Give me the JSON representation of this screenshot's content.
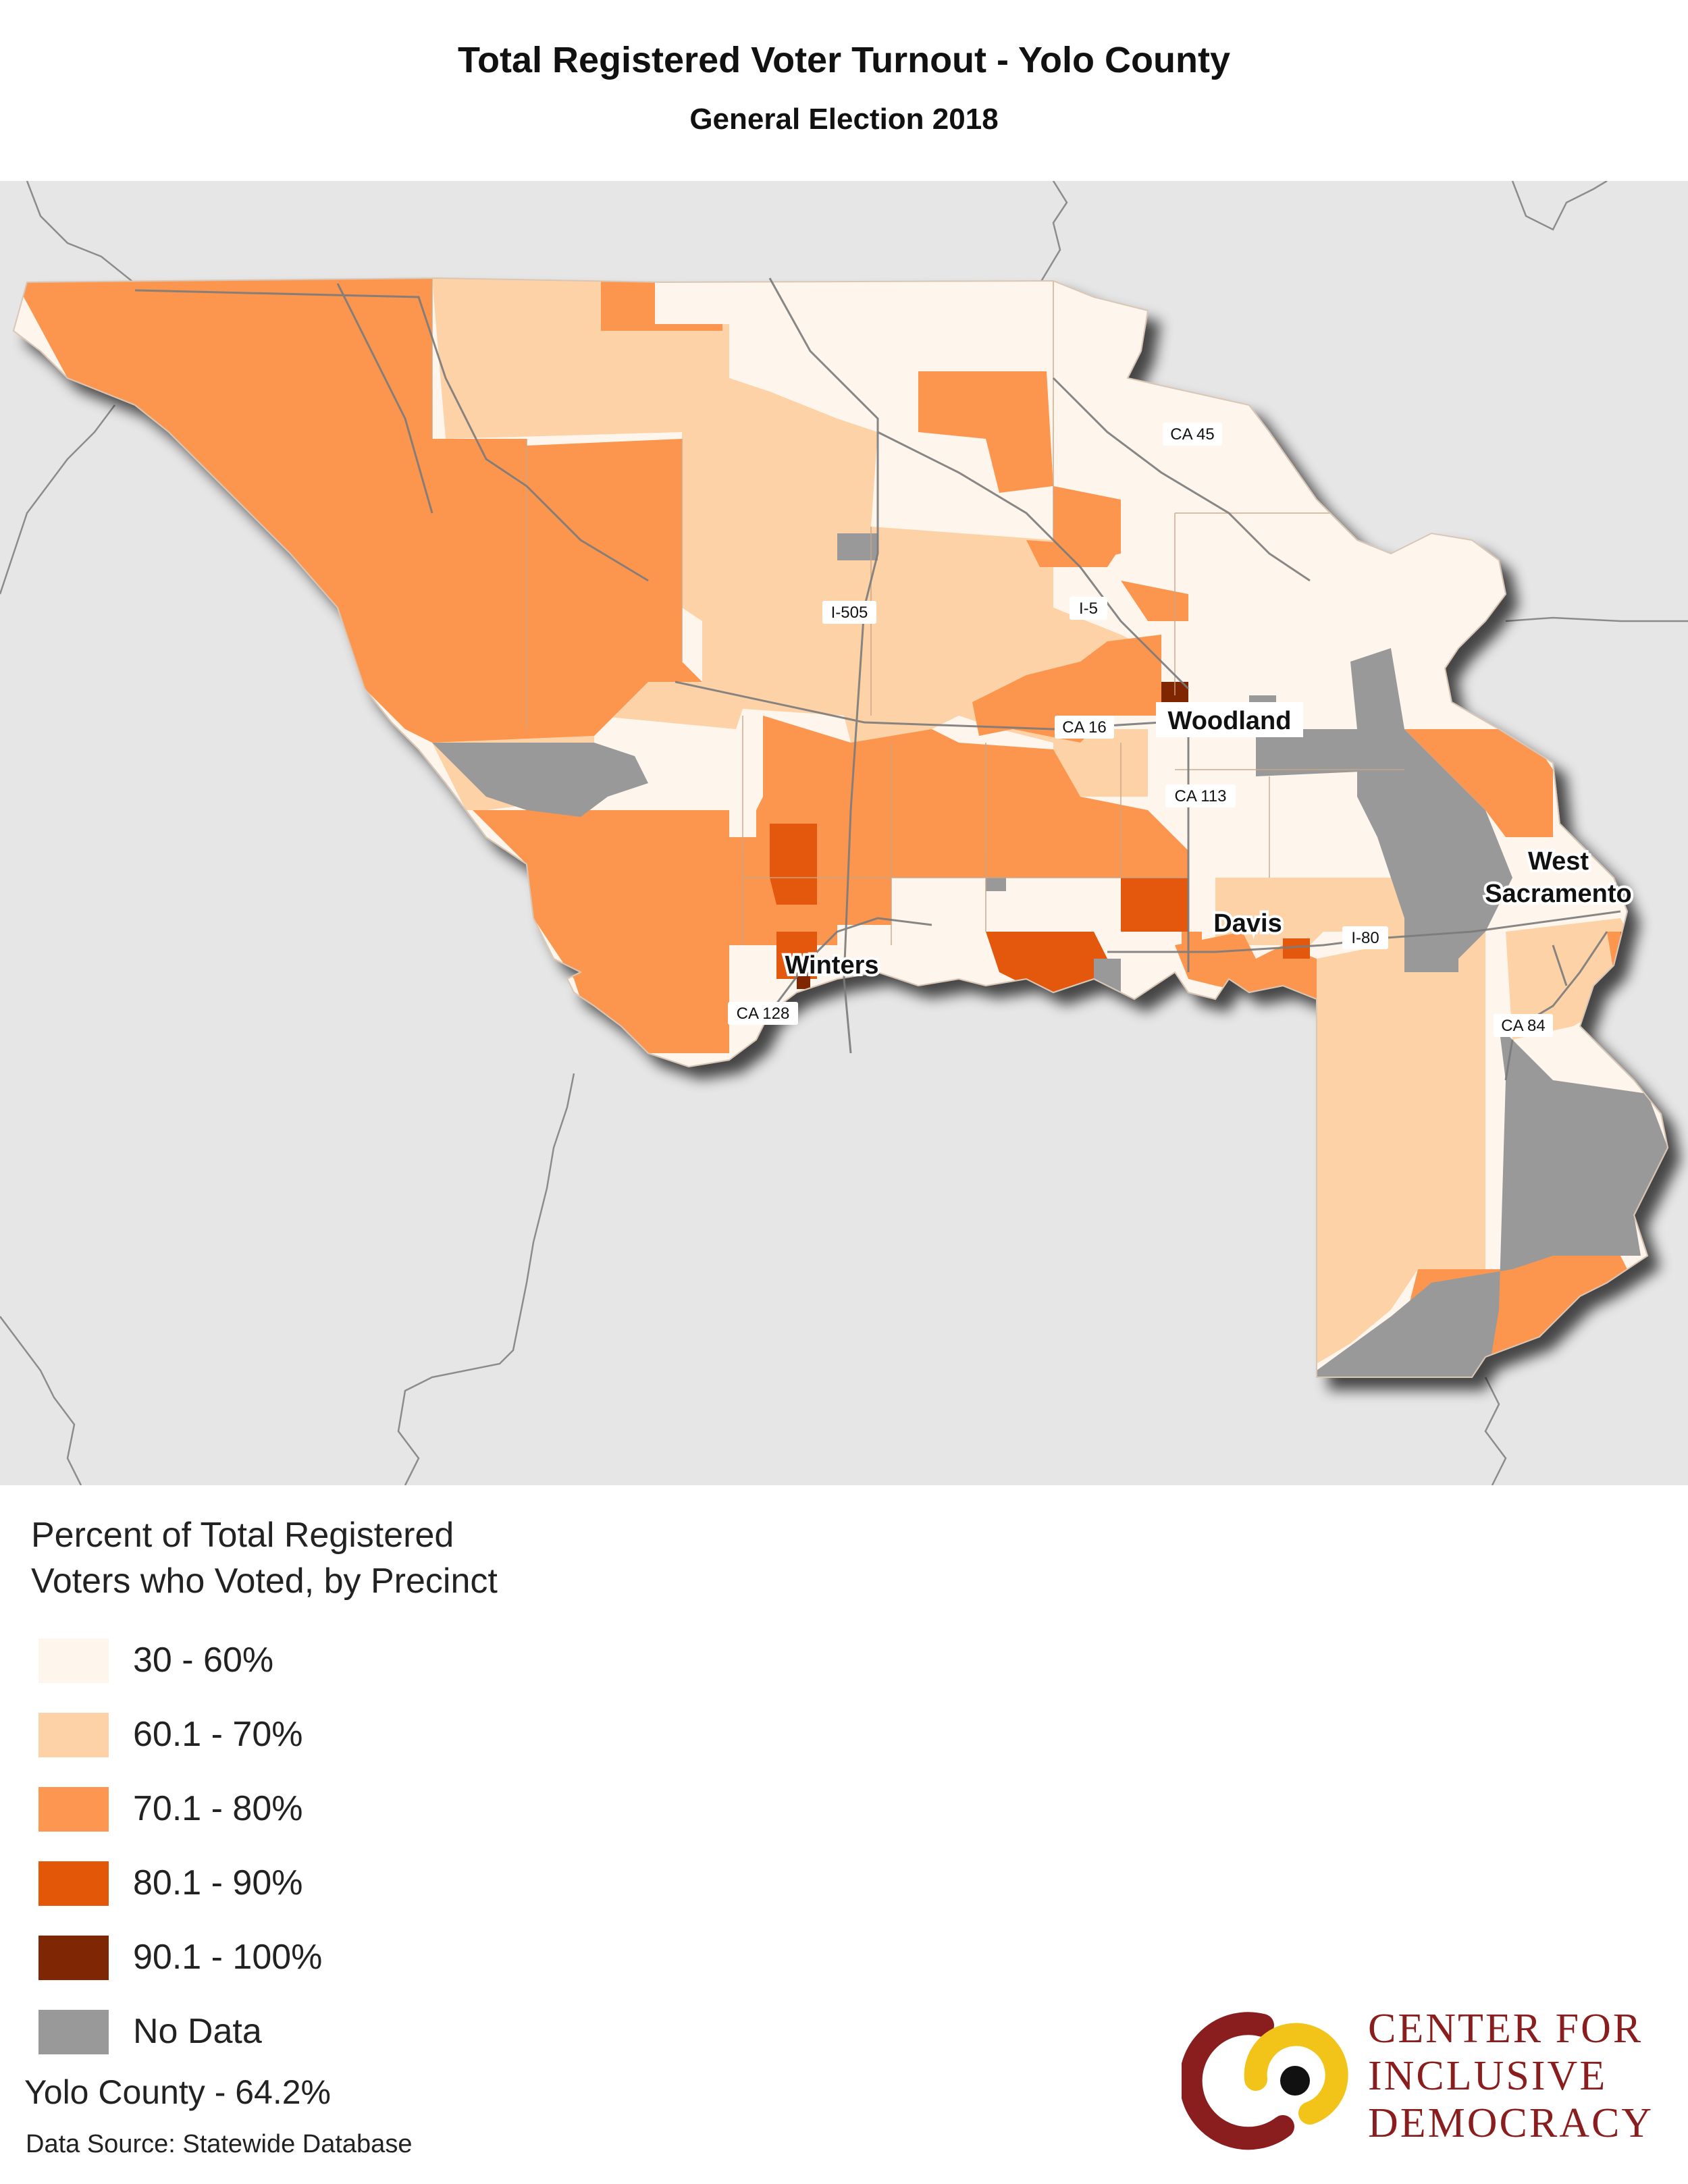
{
  "title": "Total Registered Voter Turnout - Yolo County",
  "subtitle": "General Election 2018",
  "colors": {
    "c30_60": "#fef5ec",
    "c60_70": "#fdd2a7",
    "c70_80": "#fc9650",
    "c80_90": "#e35808",
    "c90_100": "#7f2704",
    "no_data": "#999999",
    "background": "#e6e6e6"
  },
  "map": {
    "places": [
      "Woodland",
      "Davis",
      "Winters",
      "West",
      "Sacramento"
    ],
    "roads": [
      "CA 45",
      "I-505",
      "I-5",
      "CA 16",
      "CA 113",
      "I-80",
      "CA 128",
      "CA 84"
    ]
  },
  "legend": {
    "title_line1": "Percent of Total Registered",
    "title_line2": "Voters who Voted, by Precinct",
    "items": [
      {
        "label": "30 - 60%",
        "color": "#fef5ec"
      },
      {
        "label": "60.1 - 70%",
        "color": "#fdd2a7"
      },
      {
        "label": "70.1 - 80%",
        "color": "#fc9650"
      },
      {
        "label": "80.1 - 90%",
        "color": "#e35808"
      },
      {
        "label": "90.1 - 100%",
        "color": "#7f2704"
      },
      {
        "label": "No Data",
        "color": "#999999"
      }
    ]
  },
  "summary": "Yolo County - 64.2%",
  "source": "Data Source: Statewide Database",
  "logo": {
    "line1": "CENTER FOR",
    "line2": "INCLUSIVE",
    "line3": "DEMOCRACY"
  }
}
